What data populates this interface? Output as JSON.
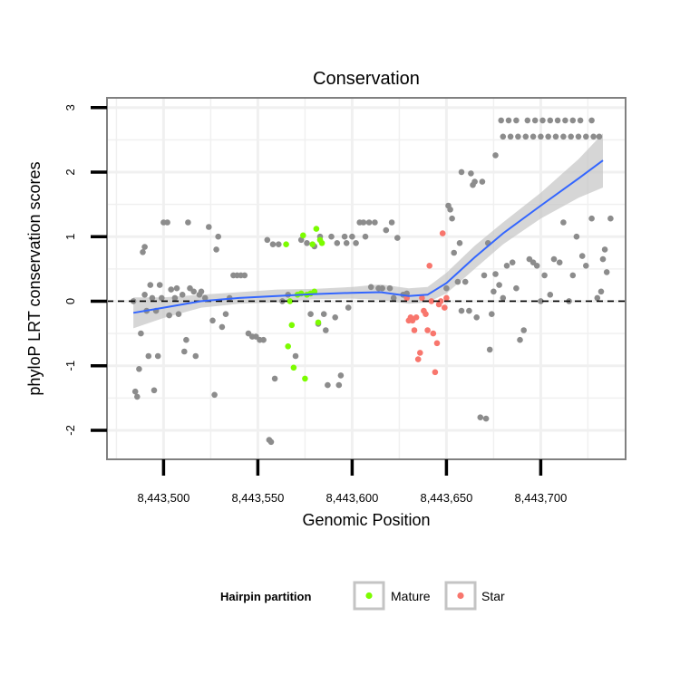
{
  "chart_data": {
    "type": "scatter",
    "title": "Conservation",
    "xlabel": "Genomic Position",
    "ylabel": "phyloP LRT conservation scores",
    "xlim": [
      8443470,
      8443745
    ],
    "ylim": [
      -2.45,
      3.15
    ],
    "x_ticks": [
      8443500,
      8443550,
      8443600,
      8443650,
      8443700
    ],
    "x_tick_labels": [
      "8,443,500",
      "8,443,550",
      "8,443,600",
      "8,443,650",
      "8,443,700"
    ],
    "y_ticks": [
      -2,
      -1,
      0,
      1,
      2,
      3
    ],
    "y_tick_labels": [
      "-2",
      "-1",
      "0",
      "1",
      "2",
      "3"
    ],
    "reference_line": {
      "y": 0,
      "style": "dashed"
    },
    "legend": {
      "title": "Hairpin partition",
      "position": "bottom",
      "items": [
        {
          "label": "Mature",
          "color": "#7CFC00"
        },
        {
          "label": "Star",
          "color": "#F8766D"
        }
      ]
    },
    "colors": {
      "other": "#8c8c8c",
      "mature": "#7CFC00",
      "star": "#F8766D",
      "smooth": "#3366FF",
      "ribbon": "#c8c8c8",
      "panel_border": "#808080",
      "grid": "#f0f0f0"
    },
    "series": [
      {
        "name": "Other",
        "group": "other",
        "points": [
          [
            8443484,
            0.0
          ],
          [
            8443485,
            -1.4
          ],
          [
            8443486,
            -1.48
          ],
          [
            8443487,
            -1.05
          ],
          [
            8443488,
            -0.5
          ],
          [
            8443489,
            0.76
          ],
          [
            8443490,
            0.84
          ],
          [
            8443490,
            0.1
          ],
          [
            8443491,
            -0.15
          ],
          [
            8443492,
            -0.85
          ],
          [
            8443493,
            0.25
          ],
          [
            8443494,
            0.05
          ],
          [
            8443495,
            -1.38
          ],
          [
            8443496,
            -0.15
          ],
          [
            8443497,
            -0.85
          ],
          [
            8443498,
            0.25
          ],
          [
            8443499,
            0.05
          ],
          [
            8443500,
            1.22
          ],
          [
            8443502,
            1.22
          ],
          [
            8443503,
            -0.22
          ],
          [
            8443504,
            0.18
          ],
          [
            8443506,
            0.05
          ],
          [
            8443507,
            0.2
          ],
          [
            8443508,
            -0.2
          ],
          [
            8443510,
            0.1
          ],
          [
            8443511,
            -0.78
          ],
          [
            8443512,
            -0.6
          ],
          [
            8443513,
            1.22
          ],
          [
            8443514,
            0.2
          ],
          [
            8443516,
            0.15
          ],
          [
            8443517,
            -0.85
          ],
          [
            8443519,
            0.1
          ],
          [
            8443520,
            0.15
          ],
          [
            8443522,
            0.05
          ],
          [
            8443524,
            1.15
          ],
          [
            8443526,
            -0.3
          ],
          [
            8443527,
            -1.45
          ],
          [
            8443528,
            0.8
          ],
          [
            8443529,
            1.0
          ],
          [
            8443531,
            -0.4
          ],
          [
            8443533,
            -0.2
          ],
          [
            8443535,
            0.05
          ],
          [
            8443537,
            0.4
          ],
          [
            8443539,
            0.4
          ],
          [
            8443541,
            0.4
          ],
          [
            8443543,
            0.4
          ],
          [
            8443545,
            -0.5
          ],
          [
            8443547,
            -0.55
          ],
          [
            8443549,
            -0.55
          ],
          [
            8443551,
            -0.6
          ],
          [
            8443553,
            -0.6
          ],
          [
            8443555,
            0.95
          ],
          [
            8443556,
            -2.15
          ],
          [
            8443557,
            -2.18
          ],
          [
            8443558,
            0.88
          ],
          [
            8443559,
            -1.2
          ],
          [
            8443561,
            0.88
          ],
          [
            8443563,
            0.0
          ],
          [
            8443566,
            0.1
          ],
          [
            8443570,
            -0.85
          ],
          [
            8443573,
            0.95
          ],
          [
            8443576,
            0.9
          ],
          [
            8443578,
            -0.2
          ],
          [
            8443580,
            0.85
          ],
          [
            8443582,
            -0.35
          ],
          [
            8443583,
            1.0
          ],
          [
            8443585,
            -0.2
          ],
          [
            8443586,
            -0.45
          ],
          [
            8443587,
            -1.3
          ],
          [
            8443589,
            1.0
          ],
          [
            8443591,
            -0.25
          ],
          [
            8443592,
            0.9
          ],
          [
            8443593,
            -1.3
          ],
          [
            8443594,
            -1.15
          ],
          [
            8443596,
            1.0
          ],
          [
            8443597,
            0.9
          ],
          [
            8443598,
            -0.1
          ],
          [
            8443600,
            1.0
          ],
          [
            8443602,
            0.9
          ],
          [
            8443604,
            1.22
          ],
          [
            8443606,
            1.22
          ],
          [
            8443607,
            1.0
          ],
          [
            8443609,
            1.22
          ],
          [
            8443610,
            0.22
          ],
          [
            8443612,
            1.22
          ],
          [
            8443614,
            0.2
          ],
          [
            8443616,
            0.2
          ],
          [
            8443618,
            1.1
          ],
          [
            8443620,
            0.2
          ],
          [
            8443621,
            1.22
          ],
          [
            8443622,
            0.05
          ],
          [
            8443624,
            0.98
          ],
          [
            8443627,
            0.1
          ],
          [
            8443628,
            0.1
          ],
          [
            8443629,
            0.12
          ],
          [
            8443650,
            0.2
          ],
          [
            8443651,
            1.48
          ],
          [
            8443652,
            1.42
          ],
          [
            8443653,
            1.28
          ],
          [
            8443654,
            0.75
          ],
          [
            8443656,
            0.3
          ],
          [
            8443657,
            0.9
          ],
          [
            8443658,
            -0.15
          ],
          [
            8443660,
            0.3
          ],
          [
            8443662,
            -0.15
          ],
          [
            8443663,
            1.98
          ],
          [
            8443664,
            1.8
          ],
          [
            8443665,
            1.85
          ],
          [
            8443666,
            -0.25
          ],
          [
            8443668,
            -1.8
          ],
          [
            8443669,
            1.85
          ],
          [
            8443670,
            0.4
          ],
          [
            8443671,
            -1.82
          ],
          [
            8443672,
            0.9
          ],
          [
            8443673,
            -0.75
          ],
          [
            8443674,
            -0.2
          ],
          [
            8443675,
            0.15
          ],
          [
            8443676,
            0.42
          ],
          [
            8443678,
            0.25
          ],
          [
            8443680,
            0.05
          ],
          [
            8443682,
            0.55
          ],
          [
            8443685,
            0.6
          ],
          [
            8443687,
            0.2
          ],
          [
            8443689,
            -0.6
          ],
          [
            8443691,
            -0.45
          ],
          [
            8443694,
            0.65
          ],
          [
            8443696,
            0.6
          ],
          [
            8443698,
            0.55
          ],
          [
            8443700,
            0.0
          ],
          [
            8443702,
            0.4
          ],
          [
            8443705,
            0.1
          ],
          [
            8443707,
            0.65
          ],
          [
            8443710,
            0.6
          ],
          [
            8443712,
            1.22
          ],
          [
            8443715,
            0.0
          ],
          [
            8443717,
            0.4
          ],
          [
            8443719,
            1.0
          ],
          [
            8443722,
            0.7
          ],
          [
            8443724,
            0.55
          ],
          [
            8443727,
            1.28
          ],
          [
            8443730,
            0.05
          ],
          [
            8443732,
            0.15
          ],
          [
            8443733,
            0.65
          ],
          [
            8443734,
            0.8
          ],
          [
            8443735,
            0.45
          ],
          [
            8443737,
            1.28
          ],
          [
            8443676,
            2.26
          ],
          [
            8443658,
            2.0
          ],
          [
            8443679,
            2.8
          ],
          [
            8443683,
            2.8
          ],
          [
            8443687,
            2.8
          ],
          [
            8443693,
            2.8
          ],
          [
            8443697,
            2.8
          ],
          [
            8443701,
            2.8
          ],
          [
            8443705,
            2.8
          ],
          [
            8443709,
            2.8
          ],
          [
            8443713,
            2.8
          ],
          [
            8443717,
            2.8
          ],
          [
            8443721,
            2.8
          ],
          [
            8443727,
            2.8
          ],
          [
            8443680,
            2.55
          ],
          [
            8443684,
            2.55
          ],
          [
            8443688,
            2.55
          ],
          [
            8443692,
            2.55
          ],
          [
            8443696,
            2.55
          ],
          [
            8443700,
            2.55
          ],
          [
            8443704,
            2.55
          ],
          [
            8443708,
            2.55
          ],
          [
            8443712,
            2.55
          ],
          [
            8443716,
            2.55
          ],
          [
            8443720,
            2.55
          ],
          [
            8443724,
            2.55
          ],
          [
            8443728,
            2.55
          ],
          [
            8443731,
            2.55
          ]
        ]
      },
      {
        "name": "Mature",
        "group": "mature",
        "points": [
          [
            8443565,
            0.88
          ],
          [
            8443566,
            -0.7
          ],
          [
            8443567,
            0.0
          ],
          [
            8443568,
            -0.37
          ],
          [
            8443569,
            -1.03
          ],
          [
            8443571,
            0.1
          ],
          [
            8443573,
            0.12
          ],
          [
            8443574,
            1.02
          ],
          [
            8443575,
            -1.2
          ],
          [
            8443576,
            0.1
          ],
          [
            8443578,
            0.12
          ],
          [
            8443579,
            0.88
          ],
          [
            8443580,
            0.15
          ],
          [
            8443581,
            1.12
          ],
          [
            8443582,
            -0.33
          ],
          [
            8443583,
            0.95
          ],
          [
            8443584,
            0.9
          ]
        ]
      },
      {
        "name": "Star",
        "group": "star",
        "points": [
          [
            8443629,
            0.05
          ],
          [
            8443630,
            -0.3
          ],
          [
            8443631,
            -0.25
          ],
          [
            8443632,
            -0.3
          ],
          [
            8443633,
            -0.45
          ],
          [
            8443634,
            -0.25
          ],
          [
            8443635,
            -0.9
          ],
          [
            8443636,
            -0.8
          ],
          [
            8443637,
            0.05
          ],
          [
            8443638,
            -0.15
          ],
          [
            8443639,
            -0.2
          ],
          [
            8443640,
            -0.45
          ],
          [
            8443641,
            0.55
          ],
          [
            8443642,
            0.0
          ],
          [
            8443643,
            -0.5
          ],
          [
            8443644,
            -1.1
          ],
          [
            8443645,
            -0.65
          ],
          [
            8443646,
            -0.05
          ],
          [
            8443647,
            0.0
          ],
          [
            8443648,
            1.05
          ],
          [
            8443649,
            -0.1
          ],
          [
            8443650,
            0.05
          ]
        ]
      }
    ],
    "smooth": {
      "method": "loess",
      "x": [
        8443484,
        8443500,
        8443520,
        8443540,
        8443560,
        8443580,
        8443600,
        8443615,
        8443630,
        8443640,
        8443650,
        8443665,
        8443680,
        8443700,
        8443720,
        8443733
      ],
      "y": [
        -0.18,
        -0.1,
        0.0,
        0.05,
        0.08,
        0.11,
        0.13,
        0.14,
        0.08,
        0.1,
        0.28,
        0.68,
        1.05,
        1.48,
        1.9,
        2.18
      ],
      "lower": [
        -0.42,
        -0.26,
        -0.1,
        -0.04,
        -0.02,
        0.03,
        0.04,
        0.02,
        -0.04,
        -0.02,
        0.12,
        0.5,
        0.88,
        1.28,
        1.6,
        1.76
      ],
      "upper": [
        0.06,
        0.06,
        0.1,
        0.14,
        0.18,
        0.19,
        0.22,
        0.26,
        0.2,
        0.22,
        0.44,
        0.86,
        1.22,
        1.68,
        2.2,
        2.6
      ]
    }
  }
}
